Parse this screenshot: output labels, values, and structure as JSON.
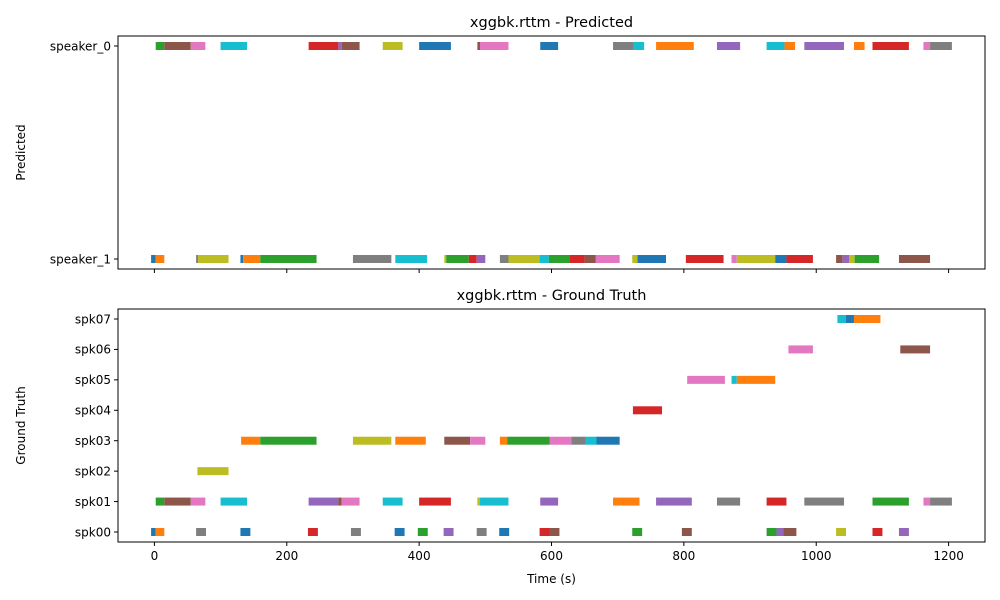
{
  "chart_data": [
    {
      "type": "timeline",
      "title": "xggbk.rttm - Predicted",
      "xlabel": "",
      "ylabel": "Predicted",
      "xlim": [
        -55,
        1255
      ],
      "xticks": [
        0,
        200,
        400,
        600,
        800,
        1000,
        1200
      ],
      "x_tick_labels_visible": false,
      "categories": [
        "speaker_1",
        "speaker_0"
      ],
      "segments": [
        {
          "speaker": "speaker_0",
          "start": 2,
          "end": 15,
          "color": "#2ca02c"
        },
        {
          "speaker": "speaker_0",
          "start": 15,
          "end": 55,
          "color": "#8c564b"
        },
        {
          "speaker": "speaker_0",
          "start": 55,
          "end": 77,
          "color": "#e377c2"
        },
        {
          "speaker": "speaker_0",
          "start": 100,
          "end": 140,
          "color": "#17becf"
        },
        {
          "speaker": "speaker_0",
          "start": 233,
          "end": 278,
          "color": "#d62728"
        },
        {
          "speaker": "speaker_0",
          "start": 278,
          "end": 283,
          "color": "#9467bd"
        },
        {
          "speaker": "speaker_0",
          "start": 283,
          "end": 310,
          "color": "#8c564b"
        },
        {
          "speaker": "speaker_0",
          "start": 345,
          "end": 375,
          "color": "#bcbd22"
        },
        {
          "speaker": "speaker_0",
          "start": 400,
          "end": 448,
          "color": "#1f77b4"
        },
        {
          "speaker": "speaker_0",
          "start": 488,
          "end": 492,
          "color": "#8c564b"
        },
        {
          "speaker": "speaker_0",
          "start": 492,
          "end": 535,
          "color": "#e377c2"
        },
        {
          "speaker": "speaker_0",
          "start": 583,
          "end": 610,
          "color": "#1f77b4"
        },
        {
          "speaker": "speaker_0",
          "start": 693,
          "end": 724,
          "color": "#7f7f7f"
        },
        {
          "speaker": "speaker_0",
          "start": 724,
          "end": 740,
          "color": "#17becf"
        },
        {
          "speaker": "speaker_0",
          "start": 758,
          "end": 815,
          "color": "#ff7f0e"
        },
        {
          "speaker": "speaker_0",
          "start": 850,
          "end": 885,
          "color": "#9467bd"
        },
        {
          "speaker": "speaker_0",
          "start": 925,
          "end": 952,
          "color": "#17becf"
        },
        {
          "speaker": "speaker_0",
          "start": 952,
          "end": 968,
          "color": "#ff7f0e"
        },
        {
          "speaker": "speaker_0",
          "start": 982,
          "end": 1042,
          "color": "#9467bd"
        },
        {
          "speaker": "speaker_0",
          "start": 1057,
          "end": 1073,
          "color": "#ff7f0e"
        },
        {
          "speaker": "speaker_0",
          "start": 1085,
          "end": 1140,
          "color": "#d62728"
        },
        {
          "speaker": "speaker_0",
          "start": 1162,
          "end": 1172,
          "color": "#e377c2"
        },
        {
          "speaker": "speaker_0",
          "start": 1172,
          "end": 1205,
          "color": "#7f7f7f"
        },
        {
          "speaker": "speaker_1",
          "start": -5,
          "end": 2,
          "color": "#1f77b4"
        },
        {
          "speaker": "speaker_1",
          "start": 2,
          "end": 15,
          "color": "#ff7f0e"
        },
        {
          "speaker": "speaker_1",
          "start": 63,
          "end": 66,
          "color": "#7f7f7f"
        },
        {
          "speaker": "speaker_1",
          "start": 66,
          "end": 112,
          "color": "#bcbd22"
        },
        {
          "speaker": "speaker_1",
          "start": 130,
          "end": 134,
          "color": "#1f77b4"
        },
        {
          "speaker": "speaker_1",
          "start": 134,
          "end": 160,
          "color": "#ff7f0e"
        },
        {
          "speaker": "speaker_1",
          "start": 160,
          "end": 245,
          "color": "#2ca02c"
        },
        {
          "speaker": "speaker_1",
          "start": 300,
          "end": 358,
          "color": "#7f7f7f"
        },
        {
          "speaker": "speaker_1",
          "start": 364,
          "end": 412,
          "color": "#17becf"
        },
        {
          "speaker": "speaker_1",
          "start": 438,
          "end": 441,
          "color": "#bcbd22"
        },
        {
          "speaker": "speaker_1",
          "start": 441,
          "end": 475,
          "color": "#2ca02c"
        },
        {
          "speaker": "speaker_1",
          "start": 475,
          "end": 487,
          "color": "#d62728"
        },
        {
          "speaker": "speaker_1",
          "start": 487,
          "end": 500,
          "color": "#9467bd"
        },
        {
          "speaker": "speaker_1",
          "start": 522,
          "end": 535,
          "color": "#7f7f7f"
        },
        {
          "speaker": "speaker_1",
          "start": 535,
          "end": 582,
          "color": "#bcbd22"
        },
        {
          "speaker": "speaker_1",
          "start": 582,
          "end": 596,
          "color": "#17becf"
        },
        {
          "speaker": "speaker_1",
          "start": 596,
          "end": 627,
          "color": "#2ca02c"
        },
        {
          "speaker": "speaker_1",
          "start": 627,
          "end": 650,
          "color": "#d62728"
        },
        {
          "speaker": "speaker_1",
          "start": 650,
          "end": 667,
          "color": "#8c564b"
        },
        {
          "speaker": "speaker_1",
          "start": 667,
          "end": 703,
          "color": "#e377c2"
        },
        {
          "speaker": "speaker_1",
          "start": 722,
          "end": 730,
          "color": "#bcbd22"
        },
        {
          "speaker": "speaker_1",
          "start": 730,
          "end": 773,
          "color": "#1f77b4"
        },
        {
          "speaker": "speaker_1",
          "start": 803,
          "end": 860,
          "color": "#d62728"
        },
        {
          "speaker": "speaker_1",
          "start": 872,
          "end": 880,
          "color": "#e377c2"
        },
        {
          "speaker": "speaker_1",
          "start": 880,
          "end": 938,
          "color": "#bcbd22"
        },
        {
          "speaker": "speaker_1",
          "start": 938,
          "end": 955,
          "color": "#1f77b4"
        },
        {
          "speaker": "speaker_1",
          "start": 955,
          "end": 995,
          "color": "#d62728"
        },
        {
          "speaker": "speaker_1",
          "start": 1030,
          "end": 1040,
          "color": "#8c564b"
        },
        {
          "speaker": "speaker_1",
          "start": 1040,
          "end": 1050,
          "color": "#9467bd"
        },
        {
          "speaker": "speaker_1",
          "start": 1050,
          "end": 1058,
          "color": "#bcbd22"
        },
        {
          "speaker": "speaker_1",
          "start": 1058,
          "end": 1095,
          "color": "#2ca02c"
        },
        {
          "speaker": "speaker_1",
          "start": 1125,
          "end": 1172,
          "color": "#8c564b"
        }
      ]
    },
    {
      "type": "timeline",
      "title": "xggbk.rttm - Ground Truth",
      "xlabel": "Time (s)",
      "ylabel": "Ground Truth",
      "xlim": [
        -55,
        1255
      ],
      "xticks": [
        0,
        200,
        400,
        600,
        800,
        1000,
        1200
      ],
      "x_tick_labels_visible": true,
      "categories": [
        "spk00",
        "spk01",
        "spk02",
        "spk03",
        "spk04",
        "spk05",
        "spk06",
        "spk07"
      ],
      "segments": [
        {
          "speaker": "spk07",
          "start": 1032,
          "end": 1045,
          "color": "#17becf"
        },
        {
          "speaker": "spk07",
          "start": 1045,
          "end": 1057,
          "color": "#1f77b4"
        },
        {
          "speaker": "spk07",
          "start": 1057,
          "end": 1097,
          "color": "#ff7f0e"
        },
        {
          "speaker": "spk06",
          "start": 958,
          "end": 995,
          "color": "#e377c2"
        },
        {
          "speaker": "spk06",
          "start": 1127,
          "end": 1172,
          "color": "#8c564b"
        },
        {
          "speaker": "spk05",
          "start": 805,
          "end": 862,
          "color": "#e377c2"
        },
        {
          "speaker": "spk05",
          "start": 872,
          "end": 880,
          "color": "#17becf"
        },
        {
          "speaker": "spk05",
          "start": 880,
          "end": 938,
          "color": "#ff7f0e"
        },
        {
          "speaker": "spk04",
          "start": 723,
          "end": 767,
          "color": "#d62728"
        },
        {
          "speaker": "spk03",
          "start": 131,
          "end": 160,
          "color": "#ff7f0e"
        },
        {
          "speaker": "spk03",
          "start": 160,
          "end": 245,
          "color": "#2ca02c"
        },
        {
          "speaker": "spk03",
          "start": 300,
          "end": 358,
          "color": "#bcbd22"
        },
        {
          "speaker": "spk03",
          "start": 364,
          "end": 410,
          "color": "#ff7f0e"
        },
        {
          "speaker": "spk03",
          "start": 438,
          "end": 477,
          "color": "#8c564b"
        },
        {
          "speaker": "spk03",
          "start": 477,
          "end": 500,
          "color": "#e377c2"
        },
        {
          "speaker": "spk03",
          "start": 522,
          "end": 533,
          "color": "#ff7f0e"
        },
        {
          "speaker": "spk03",
          "start": 533,
          "end": 597,
          "color": "#2ca02c"
        },
        {
          "speaker": "spk03",
          "start": 597,
          "end": 630,
          "color": "#e377c2"
        },
        {
          "speaker": "spk03",
          "start": 630,
          "end": 652,
          "color": "#7f7f7f"
        },
        {
          "speaker": "spk03",
          "start": 652,
          "end": 668,
          "color": "#17becf"
        },
        {
          "speaker": "spk03",
          "start": 668,
          "end": 703,
          "color": "#1f77b4"
        },
        {
          "speaker": "spk02",
          "start": 65,
          "end": 112,
          "color": "#bcbd22"
        },
        {
          "speaker": "spk01",
          "start": 2,
          "end": 15,
          "color": "#2ca02c"
        },
        {
          "speaker": "spk01",
          "start": 15,
          "end": 55,
          "color": "#8c564b"
        },
        {
          "speaker": "spk01",
          "start": 55,
          "end": 77,
          "color": "#e377c2"
        },
        {
          "speaker": "spk01",
          "start": 100,
          "end": 140,
          "color": "#17becf"
        },
        {
          "speaker": "spk01",
          "start": 233,
          "end": 278,
          "color": "#9467bd"
        },
        {
          "speaker": "spk01",
          "start": 278,
          "end": 283,
          "color": "#8c564b"
        },
        {
          "speaker": "spk01",
          "start": 283,
          "end": 310,
          "color": "#e377c2"
        },
        {
          "speaker": "spk01",
          "start": 345,
          "end": 375,
          "color": "#17becf"
        },
        {
          "speaker": "spk01",
          "start": 400,
          "end": 448,
          "color": "#d62728"
        },
        {
          "speaker": "spk01",
          "start": 488,
          "end": 492,
          "color": "#bcbd22"
        },
        {
          "speaker": "spk01",
          "start": 492,
          "end": 535,
          "color": "#17becf"
        },
        {
          "speaker": "spk01",
          "start": 583,
          "end": 610,
          "color": "#9467bd"
        },
        {
          "speaker": "spk01",
          "start": 693,
          "end": 733,
          "color": "#ff7f0e"
        },
        {
          "speaker": "spk01",
          "start": 758,
          "end": 812,
          "color": "#9467bd"
        },
        {
          "speaker": "spk01",
          "start": 850,
          "end": 885,
          "color": "#7f7f7f"
        },
        {
          "speaker": "spk01",
          "start": 925,
          "end": 955,
          "color": "#d62728"
        },
        {
          "speaker": "spk01",
          "start": 982,
          "end": 1042,
          "color": "#7f7f7f"
        },
        {
          "speaker": "spk01",
          "start": 1085,
          "end": 1140,
          "color": "#2ca02c"
        },
        {
          "speaker": "spk01",
          "start": 1162,
          "end": 1172,
          "color": "#e377c2"
        },
        {
          "speaker": "spk01",
          "start": 1172,
          "end": 1205,
          "color": "#7f7f7f"
        },
        {
          "speaker": "spk00",
          "start": -5,
          "end": 2,
          "color": "#1f77b4"
        },
        {
          "speaker": "spk00",
          "start": 2,
          "end": 15,
          "color": "#ff7f0e"
        },
        {
          "speaker": "spk00",
          "start": 63,
          "end": 78,
          "color": "#7f7f7f"
        },
        {
          "speaker": "spk00",
          "start": 130,
          "end": 145,
          "color": "#1f77b4"
        },
        {
          "speaker": "spk00",
          "start": 232,
          "end": 247,
          "color": "#d62728"
        },
        {
          "speaker": "spk00",
          "start": 297,
          "end": 312,
          "color": "#7f7f7f"
        },
        {
          "speaker": "spk00",
          "start": 363,
          "end": 378,
          "color": "#1f77b4"
        },
        {
          "speaker": "spk00",
          "start": 398,
          "end": 413,
          "color": "#2ca02c"
        },
        {
          "speaker": "spk00",
          "start": 437,
          "end": 452,
          "color": "#9467bd"
        },
        {
          "speaker": "spk00",
          "start": 487,
          "end": 502,
          "color": "#7f7f7f"
        },
        {
          "speaker": "spk00",
          "start": 521,
          "end": 536,
          "color": "#1f77b4"
        },
        {
          "speaker": "spk00",
          "start": 582,
          "end": 597,
          "color": "#d62728"
        },
        {
          "speaker": "spk00",
          "start": 597,
          "end": 612,
          "color": "#8c564b"
        },
        {
          "speaker": "spk00",
          "start": 722,
          "end": 737,
          "color": "#2ca02c"
        },
        {
          "speaker": "spk00",
          "start": 797,
          "end": 812,
          "color": "#8c564b"
        },
        {
          "speaker": "spk00",
          "start": 925,
          "end": 940,
          "color": "#2ca02c"
        },
        {
          "speaker": "spk00",
          "start": 940,
          "end": 950,
          "color": "#9467bd"
        },
        {
          "speaker": "spk00",
          "start": 950,
          "end": 970,
          "color": "#8c564b"
        },
        {
          "speaker": "spk00",
          "start": 1030,
          "end": 1045,
          "color": "#bcbd22"
        },
        {
          "speaker": "spk00",
          "start": 1085,
          "end": 1100,
          "color": "#d62728"
        },
        {
          "speaker": "spk00",
          "start": 1125,
          "end": 1140,
          "color": "#9467bd"
        }
      ]
    }
  ]
}
